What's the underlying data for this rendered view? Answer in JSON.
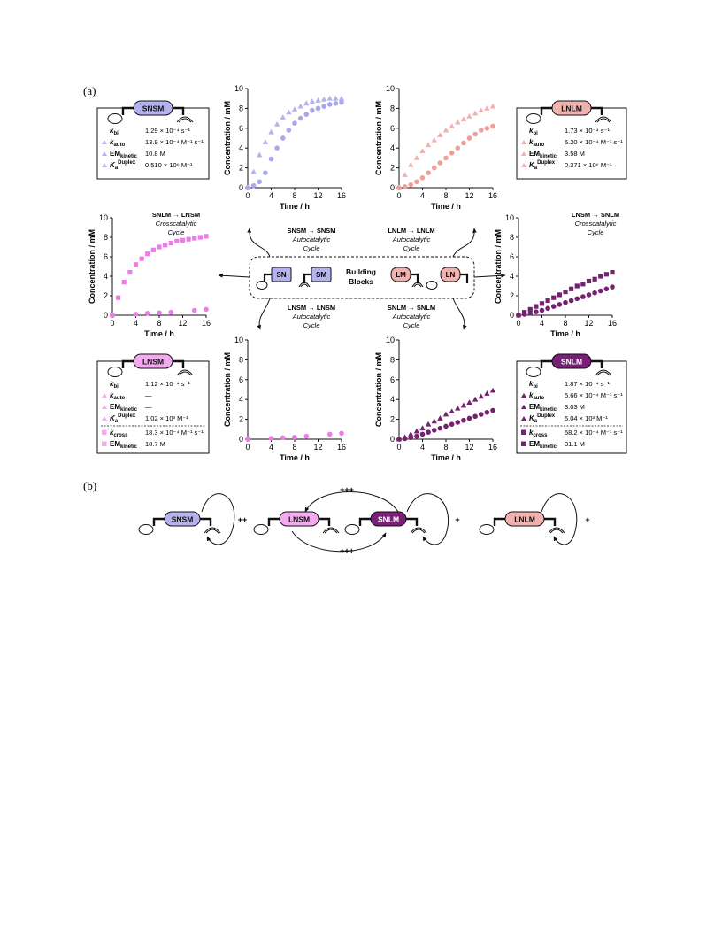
{
  "panel_labels": {
    "a": "(a)",
    "b": "(b)"
  },
  "axis": {
    "ylabel": "Concentration / mM",
    "xlabel": "Time / h",
    "xticks": [
      "0",
      "4",
      "8",
      "12",
      "16"
    ],
    "yticks": [
      "0",
      "2",
      "4",
      "6",
      "8",
      "10"
    ]
  },
  "colors": {
    "snsm": "#b5b3ef",
    "snsm_pt": "#a9a8ec",
    "lnlm": "#f1b1ae",
    "lnlm_pt": "#ef9f9a",
    "lnsm": "#f5a9f1",
    "lnsm_pt": "#ea7de6",
    "snlm": "#7a1f78",
    "snlm_pt": "#742270"
  },
  "building_blocks": {
    "title_line1": "Building",
    "title_line2": "Blocks",
    "sn": "SN",
    "sm": "SM",
    "lm": "LM",
    "ln": "LN"
  },
  "cycles": {
    "snsm": {
      "rxn": "SNSM → SNSM",
      "l1": "Autocatalytic",
      "l2": "Cycle"
    },
    "lnlm": {
      "rxn": "LNLM → LNLM",
      "l1": "Autocatalytic",
      "l2": "Cycle"
    },
    "lnsm": {
      "rxn": "LNSM → LNSM",
      "l1": "Autocatalytic",
      "l2": "Cycle"
    },
    "snlm": {
      "rxn": "SNLM → SNLM",
      "l1": "Autocatalytic",
      "l2": "Cycle"
    },
    "cross_left": {
      "rxn": "SNLM → LNSM",
      "l1": "Crosscatalytic",
      "l2": "Cycle"
    },
    "cross_right": {
      "rxn": "LNSM → SNLM",
      "l1": "Crosscatalytic",
      "l2": "Cycle"
    }
  },
  "infoboxes": {
    "snsm": {
      "title": "SNSM",
      "rows": [
        {
          "label": "k",
          "sub": "bi",
          "sup": "",
          "value": "1.29 × 10⁻⁴ s⁻¹"
        },
        {
          "label": "k",
          "sub": "auto",
          "sup": "",
          "value": "13.9 × 10⁻⁴ M⁻¹ s⁻¹"
        },
        {
          "label": "EM",
          "sub": "kinetic",
          "sup": "",
          "value": "10.8 M"
        },
        {
          "label": "K",
          "sub": "a",
          "sup": "Duplex",
          "value": "0.510 × 10⁶ M⁻¹"
        }
      ]
    },
    "lnlm": {
      "title": "LNLM",
      "rows": [
        {
          "label": "k",
          "sub": "bi",
          "sup": "",
          "value": "1.73 × 10⁻⁴ s⁻¹"
        },
        {
          "label": "k",
          "sub": "auto",
          "sup": "",
          "value": "6.20 × 10⁻⁴ M⁻¹ s⁻¹"
        },
        {
          "label": "EM",
          "sub": "kinetic",
          "sup": "",
          "value": "3.58 M"
        },
        {
          "label": "K",
          "sub": "a",
          "sup": "Duplex",
          "value": "0.371 × 10⁶ M⁻¹"
        }
      ]
    },
    "lnsm": {
      "title": "LNSM",
      "rows": [
        {
          "label": "k",
          "sub": "bi",
          "sup": "",
          "value": "1.12 × 10⁻⁴ s⁻¹"
        },
        {
          "label": "k",
          "sub": "auto",
          "sup": "",
          "value": "—"
        },
        {
          "label": "EM",
          "sub": "kinetic",
          "sup": "",
          "value": "—"
        },
        {
          "label": "K",
          "sub": "a",
          "sup": "Duplex",
          "value": "1.02 × 10³ M⁻¹"
        },
        {
          "label": "k",
          "sub": "cross",
          "sup": "",
          "value": "18.3 × 10⁻⁴ M⁻¹ s⁻¹"
        },
        {
          "label": "EM",
          "sub": "kinetic",
          "sup": "",
          "value": "18.7 M"
        }
      ]
    },
    "snlm": {
      "title": "SNLM",
      "rows": [
        {
          "label": "k",
          "sub": "bi",
          "sup": "",
          "value": "1.87 × 10⁻⁴ s⁻¹"
        },
        {
          "label": "k",
          "sub": "auto",
          "sup": "",
          "value": "5.66 × 10⁻⁴ M⁻¹ s⁻¹"
        },
        {
          "label": "EM",
          "sub": "kinetic",
          "sup": "",
          "value": "3.03 M"
        },
        {
          "label": "K",
          "sub": "a",
          "sup": "Duplex",
          "value": "5.04 × 10³ M⁻¹"
        },
        {
          "label": "k",
          "sub": "cross",
          "sup": "",
          "value": "58.2 × 10⁻⁴ M⁻¹ s⁻¹"
        },
        {
          "label": "EM",
          "sub": "kinetic",
          "sup": "",
          "value": "31.1 M"
        }
      ]
    }
  },
  "panel_b": {
    "snsm": "SNSM",
    "lnsm": "LNSM",
    "snlm": "SNLM",
    "lnlm": "LNLM",
    "plus2": "++",
    "plus3_top": "+++",
    "plus3_bottom": "+++",
    "plus1a": "+",
    "plus1b": "+"
  },
  "chart_data": [
    {
      "id": "snsm",
      "type": "scatter",
      "xlim": [
        0,
        16
      ],
      "ylim": [
        0,
        10
      ],
      "xlabel": "Time / h",
      "ylabel": "Concentration / mM",
      "series": [
        {
          "marker": "triangle",
          "x": [
            0,
            1,
            2,
            3,
            4,
            5,
            6,
            7,
            8,
            9,
            10,
            11,
            12,
            13,
            14,
            15,
            16
          ],
          "y": [
            0,
            1.6,
            3.3,
            4.6,
            5.6,
            6.4,
            7.1,
            7.6,
            7.9,
            8.2,
            8.5,
            8.7,
            8.8,
            8.9,
            9.0,
            9.0,
            9.0
          ]
        },
        {
          "marker": "circle",
          "x": [
            0,
            1,
            2,
            3,
            4,
            5,
            6,
            7,
            8,
            9,
            10,
            11,
            12,
            13,
            14,
            15,
            16
          ],
          "y": [
            0,
            0.2,
            0.6,
            1.5,
            2.9,
            4.0,
            5.0,
            5.8,
            6.5,
            7.0,
            7.4,
            7.8,
            8.0,
            8.2,
            8.4,
            8.5,
            8.6
          ]
        }
      ]
    },
    {
      "id": "lnlm",
      "type": "scatter",
      "xlim": [
        0,
        16
      ],
      "ylim": [
        0,
        10
      ],
      "xlabel": "Time / h",
      "ylabel": "Concentration / mM",
      "series": [
        {
          "marker": "triangle",
          "x": [
            0,
            1,
            2,
            3,
            4,
            5,
            6,
            7,
            8,
            9,
            10,
            11,
            12,
            13,
            14,
            15,
            16
          ],
          "y": [
            0,
            1.3,
            2.3,
            3.0,
            3.7,
            4.3,
            4.8,
            5.3,
            5.8,
            6.2,
            6.6,
            6.9,
            7.2,
            7.5,
            7.8,
            8.0,
            8.2
          ]
        },
        {
          "marker": "circle",
          "x": [
            0,
            1,
            2,
            3,
            4,
            5,
            6,
            7,
            8,
            9,
            10,
            11,
            12,
            13,
            14,
            15,
            16
          ],
          "y": [
            0,
            0.1,
            0.3,
            0.6,
            1.0,
            1.5,
            2.0,
            2.5,
            3.0,
            3.5,
            4.0,
            4.5,
            5.0,
            5.4,
            5.8,
            6.0,
            6.2
          ]
        }
      ]
    },
    {
      "id": "cross_left",
      "type": "scatter",
      "xlim": [
        0,
        16
      ],
      "ylim": [
        0,
        10
      ],
      "xlabel": "Time / h",
      "ylabel": "Concentration / mM",
      "series": [
        {
          "marker": "square",
          "x": [
            0,
            1,
            2,
            3,
            4,
            5,
            6,
            7,
            8,
            9,
            10,
            11,
            12,
            13,
            14,
            15,
            16
          ],
          "y": [
            0,
            1.8,
            3.4,
            4.4,
            5.2,
            5.8,
            6.3,
            6.7,
            7.0,
            7.2,
            7.4,
            7.6,
            7.7,
            7.8,
            7.9,
            8.0,
            8.1
          ]
        },
        {
          "marker": "circle",
          "x": [
            0,
            4,
            6,
            8,
            10,
            14,
            16
          ],
          "y": [
            0,
            0.1,
            0.2,
            0.25,
            0.3,
            0.5,
            0.6
          ]
        }
      ]
    },
    {
      "id": "cross_right",
      "type": "scatter",
      "xlim": [
        0,
        16
      ],
      "ylim": [
        0,
        10
      ],
      "xlabel": "Time / h",
      "ylabel": "Concentration / mM",
      "series": [
        {
          "marker": "square",
          "x": [
            0,
            1,
            2,
            3,
            4,
            5,
            6,
            7,
            8,
            9,
            10,
            11,
            12,
            13,
            14,
            15,
            16
          ],
          "y": [
            0,
            0.3,
            0.6,
            0.9,
            1.2,
            1.5,
            1.8,
            2.1,
            2.4,
            2.7,
            3.0,
            3.2,
            3.5,
            3.7,
            4.0,
            4.2,
            4.4
          ]
        },
        {
          "marker": "circle",
          "x": [
            0,
            1,
            2,
            3,
            4,
            5,
            6,
            7,
            8,
            9,
            10,
            11,
            12,
            13,
            14,
            15,
            16
          ],
          "y": [
            0,
            0.1,
            0.2,
            0.35,
            0.5,
            0.7,
            0.9,
            1.1,
            1.3,
            1.5,
            1.7,
            1.9,
            2.1,
            2.3,
            2.5,
            2.7,
            2.9
          ]
        }
      ]
    },
    {
      "id": "lnsm",
      "type": "scatter",
      "xlim": [
        0,
        16
      ],
      "ylim": [
        0,
        10
      ],
      "xlabel": "Time / h",
      "ylabel": "Concentration / mM",
      "series": [
        {
          "marker": "circle",
          "x": [
            0,
            4,
            6,
            8,
            10,
            14,
            16
          ],
          "y": [
            0,
            0.1,
            0.15,
            0.2,
            0.3,
            0.5,
            0.6
          ]
        }
      ]
    },
    {
      "id": "snlm",
      "type": "scatter",
      "xlim": [
        0,
        16
      ],
      "ylim": [
        0,
        10
      ],
      "xlabel": "Time / h",
      "ylabel": "Concentration / mM",
      "series": [
        {
          "marker": "triangle",
          "x": [
            0,
            1,
            2,
            3,
            4,
            5,
            6,
            7,
            8,
            9,
            10,
            11,
            12,
            13,
            14,
            15,
            16
          ],
          "y": [
            0,
            0.2,
            0.5,
            0.8,
            1.1,
            1.5,
            1.8,
            2.1,
            2.5,
            2.8,
            3.1,
            3.4,
            3.7,
            4.0,
            4.3,
            4.6,
            4.9
          ]
        },
        {
          "marker": "circle",
          "x": [
            0,
            1,
            2,
            3,
            4,
            5,
            6,
            7,
            8,
            9,
            10,
            11,
            12,
            13,
            14,
            15,
            16
          ],
          "y": [
            0,
            0.05,
            0.15,
            0.3,
            0.5,
            0.7,
            0.9,
            1.1,
            1.3,
            1.5,
            1.7,
            1.9,
            2.1,
            2.3,
            2.5,
            2.7,
            2.9
          ]
        }
      ]
    }
  ]
}
